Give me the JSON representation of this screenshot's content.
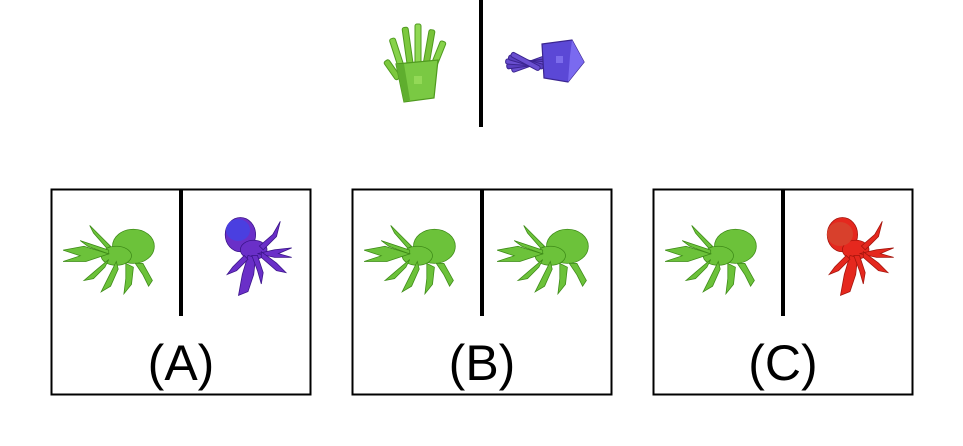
{
  "question": {
    "left_object": {
      "icon": "fries-box-icon",
      "color": "#7ac943"
    },
    "right_object": {
      "icon": "fries-box-icon",
      "color": "#5a3fc0"
    }
  },
  "options": [
    {
      "label": "(A)",
      "left_icon": "hermit-crab-icon",
      "left_color": "#6cc23a",
      "right_icon": "hermit-crab-icon",
      "right_color": "#6a2fc8"
    },
    {
      "label": "(B)",
      "left_icon": "hermit-crab-icon",
      "left_color": "#6cc23a",
      "right_icon": "hermit-crab-icon",
      "right_color": "#6cc23a"
    },
    {
      "label": "(C)",
      "left_icon": "hermit-crab-icon",
      "left_color": "#6cc23a",
      "right_icon": "hermit-crab-icon",
      "right_color": "#e5281e"
    }
  ]
}
